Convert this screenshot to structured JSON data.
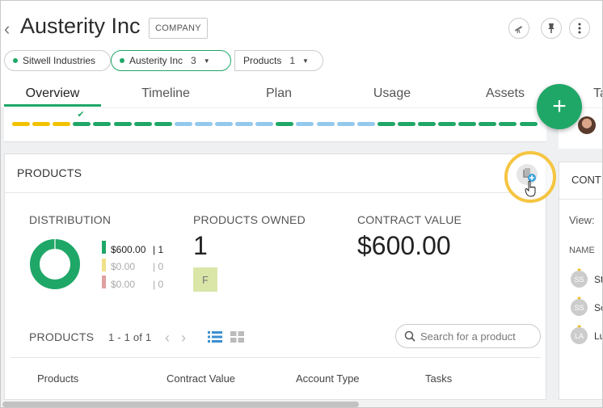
{
  "header": {
    "title": "Austerity Inc",
    "badge": "COMPANY",
    "actions": [
      "telescope-icon",
      "pin-icon",
      "more-vertical-icon"
    ]
  },
  "chips": [
    {
      "label": "Sitwell Industries",
      "count": ""
    },
    {
      "label": "Austerity Inc",
      "count": "3"
    },
    {
      "label": "Products",
      "count": "1"
    }
  ],
  "tabs": [
    {
      "label": "Overview",
      "active": true
    },
    {
      "label": "Timeline"
    },
    {
      "label": "Plan"
    },
    {
      "label": "Usage"
    },
    {
      "label": "Assets"
    },
    {
      "label": "Ta"
    }
  ],
  "progress_segments": [
    "yellow",
    "yellow",
    "yellow",
    "green",
    "green",
    "green",
    "green",
    "green",
    "blue",
    "blue",
    "blue",
    "blue",
    "blue",
    "green",
    "blue",
    "blue",
    "blue",
    "blue",
    "green",
    "green",
    "green",
    "green",
    "green",
    "green",
    "green",
    "green"
  ],
  "colors": {
    "green": "#1fa767",
    "yellow": "#f2c200",
    "blue": "#93c9ec",
    "accent_ring": "#f5c542"
  },
  "products": {
    "title": "PRODUCTS",
    "distribution_label": "DISTRIBUTION",
    "distribution": [
      {
        "value": "$600.00",
        "count": "| 1",
        "color": "#1fa767"
      },
      {
        "value": "$0.00",
        "count": "| 0",
        "color": "#f0e08a"
      },
      {
        "value": "$0.00",
        "count": "| 0",
        "color": "#e0a0a0"
      }
    ],
    "owned_label": "PRODUCTS OWNED",
    "owned_value": "1",
    "owned_tag": "F",
    "contract_label": "CONTRACT VALUE",
    "contract_value": "$600.00",
    "list_label": "PRODUCTS",
    "pagination": "1 - 1 of 1",
    "search_placeholder": "Search for a product",
    "columns": [
      "Products",
      "Contract Value",
      "Account Type",
      "Tasks"
    ]
  },
  "contacts": {
    "title": "CONT",
    "view_label": "View:",
    "name_header": "NAME",
    "rows": [
      {
        "initials": "SS",
        "text": "St"
      },
      {
        "initials": "SS",
        "text": "Sc"
      },
      {
        "initials": "LA",
        "text": "Lu"
      }
    ]
  }
}
